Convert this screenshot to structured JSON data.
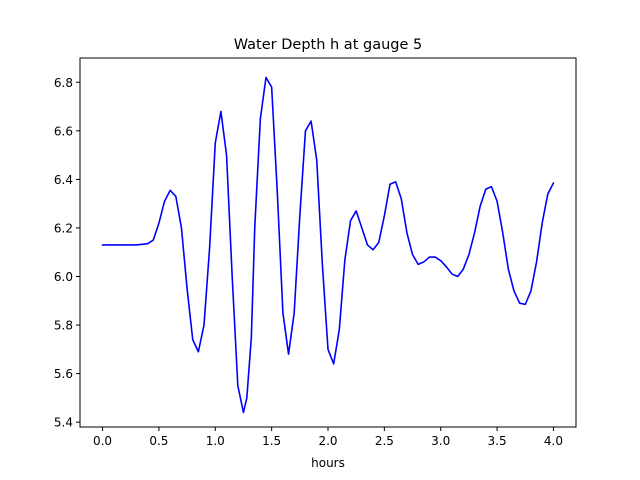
{
  "chart_data": {
    "type": "line",
    "title": "Water Depth h at gauge 5",
    "xlabel": "hours",
    "ylabel": "",
    "xlim": [
      -0.2,
      4.2
    ],
    "ylim": [
      5.38,
      6.9
    ],
    "xticks": [
      0.0,
      0.5,
      1.0,
      1.5,
      2.0,
      2.5,
      3.0,
      3.5,
      4.0
    ],
    "xtick_labels": [
      "0.0",
      "0.5",
      "1.0",
      "1.5",
      "2.0",
      "2.5",
      "3.0",
      "3.5",
      "4.0"
    ],
    "yticks": [
      5.4,
      5.6,
      5.8,
      6.0,
      6.2,
      6.4,
      6.6,
      6.8
    ],
    "ytick_labels": [
      "5.4",
      "5.6",
      "5.8",
      "6.0",
      "6.2",
      "6.4",
      "6.6",
      "6.8"
    ],
    "grid": false,
    "series": [
      {
        "color": "#0000ff",
        "x": [
          0.0,
          0.1,
          0.2,
          0.3,
          0.4,
          0.45,
          0.5,
          0.55,
          0.6,
          0.65,
          0.7,
          0.75,
          0.8,
          0.85,
          0.9,
          0.95,
          1.0,
          1.05,
          1.1,
          1.15,
          1.2,
          1.25,
          1.28,
          1.32,
          1.35,
          1.4,
          1.45,
          1.5,
          1.55,
          1.6,
          1.65,
          1.7,
          1.75,
          1.8,
          1.85,
          1.9,
          1.95,
          2.0,
          2.05,
          2.1,
          2.15,
          2.2,
          2.25,
          2.3,
          2.35,
          2.4,
          2.45,
          2.5,
          2.55,
          2.6,
          2.65,
          2.7,
          2.75,
          2.8,
          2.85,
          2.9,
          2.95,
          3.0,
          3.05,
          3.1,
          3.15,
          3.2,
          3.25,
          3.3,
          3.35,
          3.4,
          3.45,
          3.5,
          3.55,
          3.6,
          3.65,
          3.7,
          3.75,
          3.8,
          3.85,
          3.9,
          3.95,
          4.0
        ],
        "y": [
          6.13,
          6.13,
          6.13,
          6.13,
          6.135,
          6.15,
          6.22,
          6.31,
          6.355,
          6.33,
          6.2,
          5.95,
          5.74,
          5.69,
          5.8,
          6.12,
          6.55,
          6.68,
          6.5,
          6.0,
          5.55,
          5.44,
          5.5,
          5.75,
          6.2,
          6.65,
          6.82,
          6.78,
          6.35,
          5.85,
          5.68,
          5.85,
          6.25,
          6.6,
          6.64,
          6.48,
          6.05,
          5.7,
          5.64,
          5.78,
          6.07,
          6.23,
          6.27,
          6.2,
          6.13,
          6.11,
          6.14,
          6.25,
          6.38,
          6.39,
          6.32,
          6.18,
          6.09,
          6.05,
          6.06,
          6.08,
          6.08,
          6.065,
          6.04,
          6.01,
          6.0,
          6.03,
          6.09,
          6.18,
          6.29,
          6.36,
          6.37,
          6.31,
          6.18,
          6.03,
          5.94,
          5.89,
          5.885,
          5.94,
          6.06,
          6.22,
          6.34,
          6.385
        ]
      }
    ]
  }
}
